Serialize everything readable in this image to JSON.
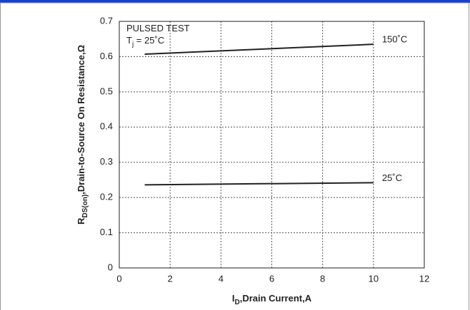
{
  "chart_data": {
    "type": "line",
    "annotations": [
      {
        "base": "PULSED TEST"
      },
      {
        "base": "T",
        "sub": "j",
        "rest": " = 25˚C"
      }
    ],
    "xlabel": {
      "base": "I",
      "sub": "D",
      "rest": ",Drain Current,A"
    },
    "ylabel": {
      "base": "R",
      "sub": "DS(on)",
      "rest": ",Drain-to-Source On Resistance,Ω"
    },
    "x": [
      1,
      10
    ],
    "series": [
      {
        "name": "150˚C",
        "color": "#222222",
        "values": [
          0.607,
          0.635
        ]
      },
      {
        "name": "25˚C",
        "color": "#222222",
        "values": [
          0.236,
          0.242
        ]
      }
    ],
    "xlim": [
      0,
      12
    ],
    "xticks": [
      0,
      2,
      4,
      6,
      8,
      10,
      12
    ],
    "ylim": [
      0,
      0.7
    ],
    "yticks": [
      0,
      0.1,
      0.2,
      0.3,
      0.4,
      0.5,
      0.6,
      0.7
    ],
    "grid": true
  }
}
